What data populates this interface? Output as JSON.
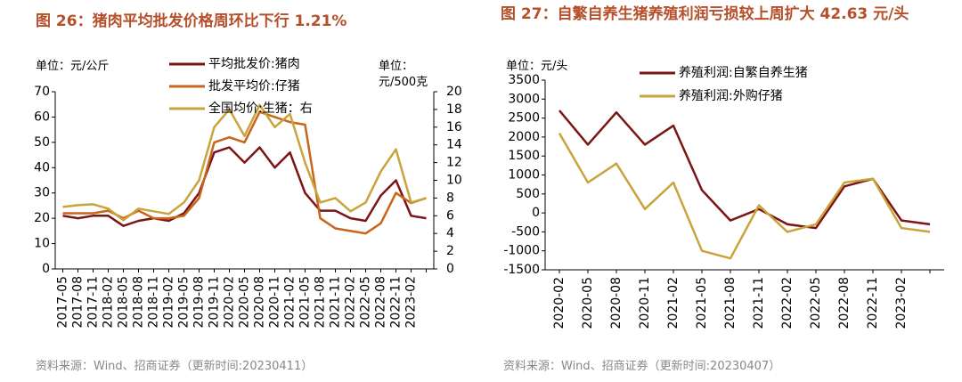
{
  "chart_data": [
    {
      "type": "line",
      "title": "图 26：猪肉平均批发价格周环比下行 1.21%",
      "y_unit": "单位：元/公斤",
      "y2_unit": "单位：元/500克",
      "source": "资料来源：Wind、招商证券（更新时间:20230411）",
      "categories": [
        "2017-05",
        "2017-08",
        "2017-11",
        "2018-02",
        "2018-05",
        "2018-08",
        "2018-11",
        "2019-02",
        "2019-05",
        "2019-08",
        "2019-11",
        "2020-02",
        "2020-05",
        "2020-08",
        "2020-11",
        "2021-02",
        "2021-05",
        "2021-08",
        "2021-11",
        "2022-02",
        "2022-05",
        "2022-08",
        "2022-11",
        "2023-02",
        null
      ],
      "ylim": [
        0,
        70
      ],
      "yticks": [
        0,
        10,
        20,
        30,
        40,
        50,
        60,
        70
      ],
      "y2lim": [
        0,
        20
      ],
      "y2ticks": [
        0,
        2,
        4,
        6,
        8,
        10,
        12,
        14,
        16,
        18,
        20
      ],
      "grid": false,
      "series": [
        {
          "name": "平均批发价:猪肉",
          "color": "#7b1416",
          "values": [
            21,
            20,
            21,
            21,
            17,
            19,
            20,
            19,
            22,
            30,
            46,
            48,
            42,
            48,
            40,
            46,
            30,
            23,
            23,
            20,
            19,
            29,
            35,
            21,
            20
          ]
        },
        {
          "name": "批发平均价:仔猪",
          "color": "#c8651b",
          "values": [
            22,
            22,
            22,
            23,
            20,
            23,
            20,
            20,
            21,
            28,
            50,
            52,
            50,
            62,
            60,
            58,
            57,
            20,
            16,
            15,
            14,
            18,
            30,
            26,
            28
          ]
        },
        {
          "name": "全国均价:生猪：右",
          "color": "#c9a43c",
          "axis": "y2",
          "values": [
            7,
            7.2,
            7.3,
            6.8,
            5.5,
            6.8,
            6.5,
            6.2,
            7.5,
            10,
            16,
            18,
            15,
            18.5,
            16,
            17.5,
            12,
            7.5,
            8,
            6.5,
            7.5,
            11,
            13.5,
            7.5,
            8
          ]
        }
      ]
    },
    {
      "type": "line",
      "title": "图 27：自繁自养生猪养殖利润亏损较上周扩大 42.63 元/头",
      "y_unit": "单位：元/头",
      "source": "资料来源：Wind、招商证券（更新时间:20230407）",
      "categories": [
        "2020-02",
        "2020-05",
        "2020-08",
        "2020-11",
        "2021-02",
        "2021-05",
        "2021-08",
        "2021-11",
        "2022-02",
        "2022-05",
        "2022-08",
        "2022-11",
        "2023-02",
        null
      ],
      "ylim": [
        -1500,
        3500
      ],
      "yticks": [
        -1500,
        -1000,
        -500,
        0,
        500,
        1000,
        1500,
        2000,
        2500,
        3000,
        3500
      ],
      "negative_tick_color": "#e00000",
      "grid": false,
      "series": [
        {
          "name": "养殖利润:自繁自养生猪",
          "color": "#7b1416",
          "values": [
            2700,
            1800,
            2650,
            1800,
            2300,
            600,
            -200,
            100,
            -300,
            -400,
            700,
            900,
            -200,
            -300
          ]
        },
        {
          "name": "养殖利润:外购仔猪",
          "color": "#c9a43c",
          "values": [
            2100,
            800,
            1300,
            100,
            800,
            -1000,
            -1200,
            200,
            -500,
            -300,
            800,
            900,
            -400,
            -500
          ]
        }
      ]
    }
  ]
}
